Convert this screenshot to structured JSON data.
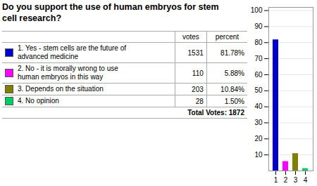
{
  "chart_data": [
    {
      "type": "table",
      "title": "Do you support the use of human embryos for stem\ncell research?",
      "columns": [
        "votes",
        "percent"
      ],
      "rows": [
        {
          "label": "1. Yes - stem cells are the future of\nadvanced medicine",
          "color": "#0000cc",
          "votes": 1531,
          "percent": "81.78%"
        },
        {
          "label": "2. No - it is morally wrong to use\nhuman embryos in this way",
          "color": "#ff00ff",
          "votes": 110,
          "percent": "5.88%"
        },
        {
          "label": "3. Depends on the situation",
          "color": "#808000",
          "votes": 203,
          "percent": "10.84%"
        },
        {
          "label": "4. No opinion",
          "color": "#00cc66",
          "votes": 28,
          "percent": "1.50%"
        }
      ],
      "footer": "Total Votes: 1872"
    },
    {
      "type": "bar",
      "categories": [
        "1",
        "2",
        "3",
        "4"
      ],
      "values": [
        81.78,
        5.88,
        10.84,
        1.5
      ],
      "colors": [
        "#0000cc",
        "#ff00ff",
        "#808000",
        "#00cc66"
      ],
      "ylim": [
        0,
        102
      ],
      "yticks": [
        10,
        20,
        30,
        40,
        50,
        60,
        70,
        80,
        90,
        100
      ],
      "grid": true
    }
  ]
}
